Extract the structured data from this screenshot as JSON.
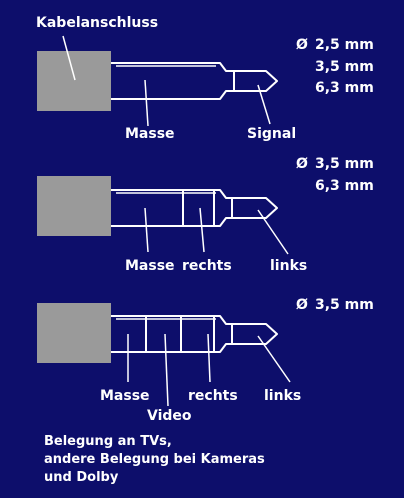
{
  "colors": {
    "background": "#0d0e6b",
    "housing": "#9a9a9a",
    "line": "#ffffff"
  },
  "diagram": {
    "cable_label": "Kabelanschluss",
    "diameter_symbol": "Ø",
    "jack1": {
      "sizes": [
        "2,5 mm",
        "3,5 mm",
        "6,3 mm"
      ],
      "labels": {
        "ground": "Masse",
        "signal": "Signal"
      }
    },
    "jack2": {
      "sizes": [
        "3,5 mm",
        "6,3 mm"
      ],
      "labels": {
        "ground": "Masse",
        "right": "rechts",
        "left": "links"
      }
    },
    "jack3": {
      "sizes": [
        "3,5 mm"
      ],
      "labels": {
        "ground": "Masse",
        "video": "Video",
        "right": "rechts",
        "left": "links"
      }
    },
    "note_lines": [
      "Belegung an TVs,",
      "andere Belegung bei Kameras",
      "und Dolby"
    ]
  }
}
